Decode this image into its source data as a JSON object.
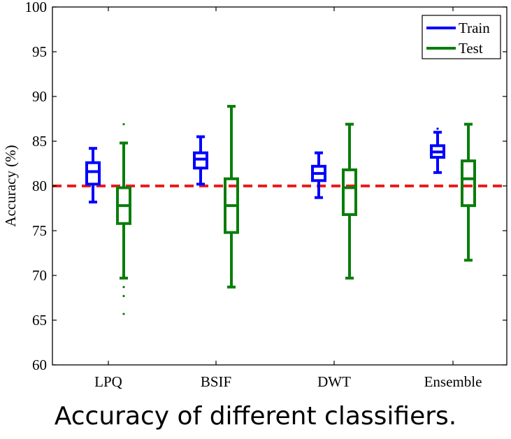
{
  "chart_data": {
    "type": "boxplot",
    "ylabel": "Accuracy (%)",
    "xlabel": "",
    "ylim": [
      60,
      100
    ],
    "yticks": [
      60,
      65,
      70,
      75,
      80,
      85,
      90,
      95,
      100
    ],
    "categories": [
      "LPQ",
      "BSIF",
      "DWT",
      "Ensemble"
    ],
    "reference_line": {
      "value": 80,
      "color": "#ee1c1c",
      "style": "dashed"
    },
    "legend": {
      "placement": "top-right"
    },
    "series": [
      {
        "name": "Train",
        "color": "#0000ff",
        "boxes": [
          {
            "min": 78.2,
            "q1": 80.2,
            "median": 81.6,
            "q3": 82.6,
            "max": 84.2,
            "outliers": []
          },
          {
            "min": 80.2,
            "q1": 82.0,
            "median": 83.0,
            "q3": 83.7,
            "max": 85.5,
            "outliers": []
          },
          {
            "min": 78.7,
            "q1": 80.6,
            "median": 81.4,
            "q3": 82.2,
            "max": 83.7,
            "outliers": []
          },
          {
            "min": 81.5,
            "q1": 83.2,
            "median": 83.8,
            "q3": 84.5,
            "max": 86.0,
            "outliers": [
              86.4
            ]
          }
        ]
      },
      {
        "name": "Test",
        "color": "#0a7d0a",
        "boxes": [
          {
            "min": 69.7,
            "q1": 75.8,
            "median": 77.8,
            "q3": 79.8,
            "max": 84.8,
            "outliers": [
              68.7,
              67.7,
              65.7,
              86.9
            ]
          },
          {
            "min": 68.7,
            "q1": 74.8,
            "median": 77.8,
            "q3": 80.8,
            "max": 88.9,
            "outliers": []
          },
          {
            "min": 69.7,
            "q1": 76.8,
            "median": 79.8,
            "q3": 81.8,
            "max": 86.9,
            "outliers": []
          },
          {
            "min": 71.7,
            "q1": 77.8,
            "median": 80.8,
            "q3": 82.8,
            "max": 86.9,
            "outliers": []
          }
        ]
      }
    ]
  },
  "caption": "Accuracy of different classifiers."
}
